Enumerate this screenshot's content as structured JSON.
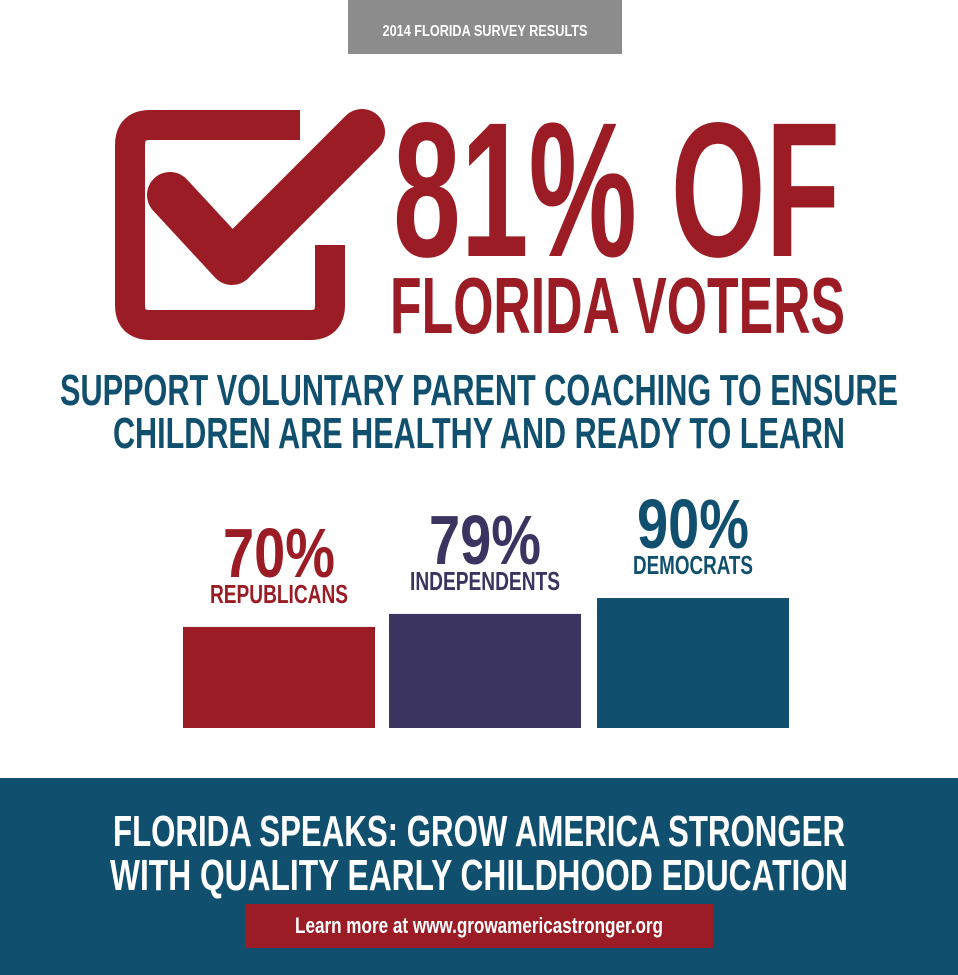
{
  "header": {
    "badge": "2014 FLORIDA SURVEY RESULTS"
  },
  "headline": {
    "line1": "81% OF",
    "line2": "FLORIDA VOTERS",
    "subtitle": [
      "SUPPORT VOLUNTARY PARENT COACHING TO ENSURE",
      "CHILDREN ARE HEALTHY AND READY TO LEARN"
    ]
  },
  "chart_data": {
    "type": "bar",
    "categories": [
      "REPUBLICANS",
      "INDEPENDENTS",
      "DEMOCRATS"
    ],
    "values": [
      70,
      79,
      90
    ],
    "value_labels": [
      "70%",
      "79%",
      "90%"
    ],
    "colors": [
      "#9b1c24",
      "#3b3360",
      "#10506e"
    ]
  },
  "footer": {
    "title": [
      "FLORIDA SPEAKS: GROW AMERICA STRONGER",
      "WITH QUALITY EARLY CHILDHOOD EDUCATION"
    ],
    "link": "Learn more at www.growamericastronger.org"
  }
}
